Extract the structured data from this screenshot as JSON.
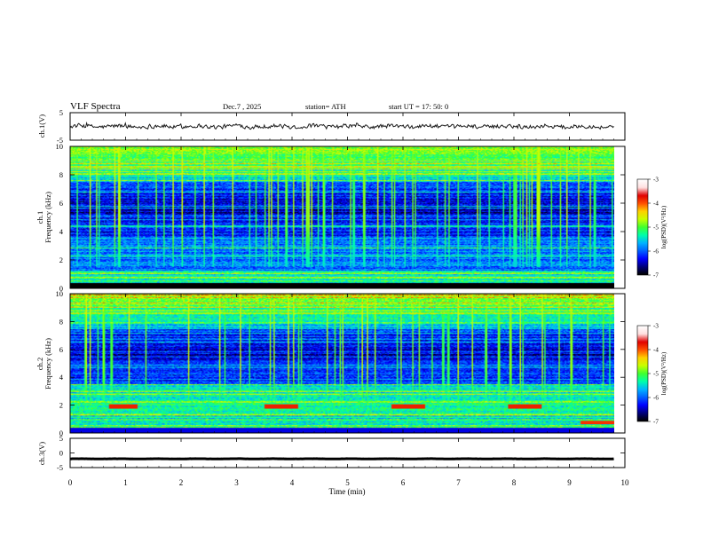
{
  "header": {
    "title": "VLF  Spectra",
    "date": "Dec.7  , 2025",
    "station": "station= ATH",
    "start_ut": "start  UT  =    17: 50: 0"
  },
  "colors": {
    "waveform": "#1a1a1a",
    "colormap": [
      "#000000",
      "#00007a",
      "#0000ff",
      "#0060ff",
      "#00b4ff",
      "#00ffaa",
      "#40ff30",
      "#c8ff00",
      "#ffd000",
      "#ff5000",
      "#e00000",
      "#ffe0e0",
      "#ffffff"
    ]
  },
  "chart_data": [
    {
      "type": "line",
      "name": "ch1-waveform",
      "ylabel": "ch.1(V)",
      "ylim": [
        -5,
        5
      ],
      "yticks": [
        "5",
        "-5"
      ],
      "xlim": [
        0,
        10
      ],
      "data_end_min": 9.8,
      "mean": 0,
      "amplitude": 1.0
    },
    {
      "type": "heatmap",
      "name": "ch1-spectrogram",
      "ylabel_line1": "ch.1",
      "ylabel_line2": "Frequency  (kHz)",
      "ylim": [
        0,
        10
      ],
      "yticks": [
        "0",
        "2",
        "4",
        "6",
        "8",
        "10"
      ],
      "xlim": [
        0,
        10
      ],
      "data_end_min": 9.8,
      "colorbar": {
        "label": "log(PSD)(V²/Hz)",
        "range": [
          -7,
          -3
        ],
        "ticks": [
          "-3",
          "-4",
          "-5",
          "-6",
          "-7"
        ]
      }
    },
    {
      "type": "heatmap",
      "name": "ch2-spectrogram",
      "ylabel_line1": "ch.2",
      "ylabel_line2": "Frequency  (kHz)",
      "ylim": [
        0,
        10
      ],
      "yticks": [
        "0",
        "2",
        "4",
        "6",
        "8",
        "10"
      ],
      "xlim": [
        0,
        10
      ],
      "data_end_min": 9.8,
      "burst_bands_khz": 1.9,
      "burst_intervals_min": [
        [
          0.7,
          1.2
        ],
        [
          3.5,
          4.1
        ],
        [
          5.8,
          6.4
        ],
        [
          7.9,
          8.5
        ]
      ],
      "colorbar": {
        "label": "log(PSD)(V²/Hz)",
        "range": [
          -7,
          -3
        ],
        "ticks": [
          "-3",
          "-4",
          "-5",
          "-6",
          "-7"
        ]
      }
    },
    {
      "type": "line",
      "name": "ch3-waveform",
      "ylabel": "ch.3(V)",
      "ylim": [
        -5,
        5
      ],
      "yticks": [
        "5",
        "0",
        "-5"
      ],
      "xlim": [
        0,
        10
      ],
      "data_end_min": 9.8,
      "mean": -2.0,
      "amplitude": 0.15
    }
  ],
  "xaxis": {
    "label": "Time  (min)",
    "ticks": [
      "0",
      "1",
      "2",
      "3",
      "4",
      "5",
      "6",
      "7",
      "8",
      "9",
      "10"
    ]
  }
}
